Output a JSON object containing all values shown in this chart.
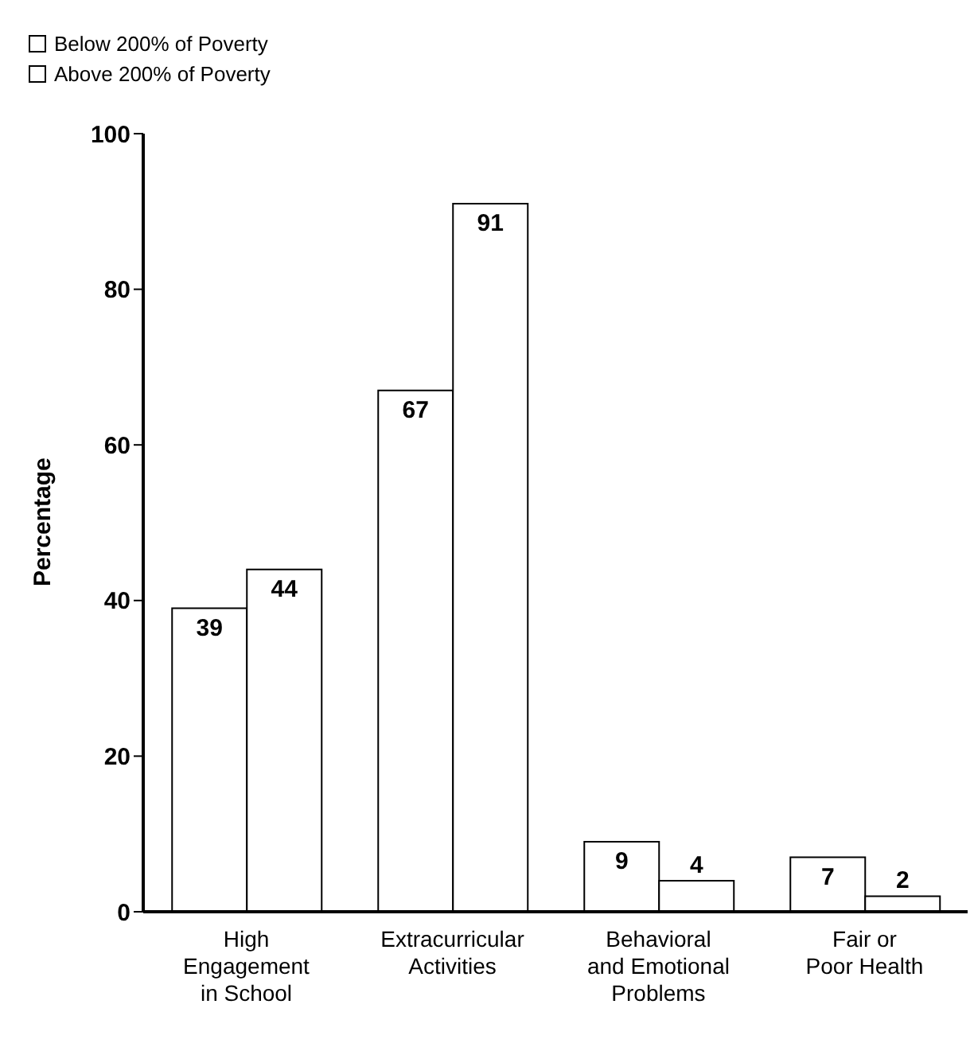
{
  "chart_data": {
    "type": "bar",
    "ylabel": "Percentage",
    "categories": [
      "High\nEngagement\nin School",
      "Extracurricular\nActivities",
      "Behavioral\nand Emotional\nProblems",
      "Fair or\nPoor Health"
    ],
    "series": [
      {
        "name": "Below 200% of Poverty",
        "color": "#ffffff",
        "values": [
          39,
          67,
          9,
          7
        ]
      },
      {
        "name": "Above 200% of Poverty",
        "color": "#ffffff",
        "values": [
          44,
          91,
          4,
          2
        ]
      }
    ],
    "ylim": [
      0,
      100
    ],
    "yticks": [
      0,
      20,
      40,
      60,
      80,
      100
    ],
    "grid": false,
    "legend": "top left",
    "data_labels": true
  }
}
